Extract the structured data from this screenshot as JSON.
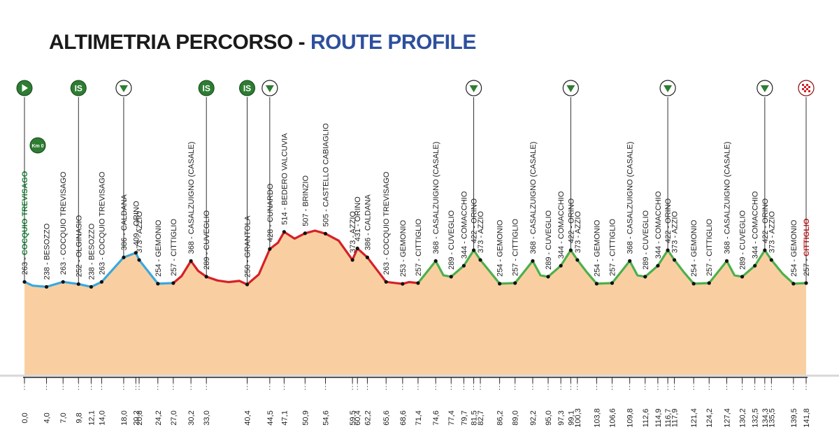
{
  "title": {
    "part1": "ALTIMETRIA PERCORSO - ",
    "part2": "ROUTE PROFILE"
  },
  "colors": {
    "fill": "#f9cfa2",
    "sector_blue": "#3aa7dd",
    "sector_red": "#d62027",
    "sector_green": "#4bb04a",
    "icon_green": "#2e7d32",
    "start_name": "#1c8a3b",
    "finish_name": "#d62027",
    "title_blue": "#2e4f9e"
  },
  "km0_label": "Km 0",
  "chart_data": {
    "type": "area",
    "title": "ALTIMETRIA PERCORSO - ROUTE PROFILE",
    "xlabel": "",
    "ylabel": "",
    "x_unit": "km",
    "y_unit": "m",
    "grid": false,
    "xlim": [
      0,
      141.8
    ],
    "points": [
      {
        "km": 0.0,
        "alt": 263,
        "name": "COCQUIO TREVISAGO",
        "label": "263 - COCQUIO TREVISAGO",
        "tick": "0,0"
      },
      {
        "km": 4.0,
        "alt": 238,
        "name": "BESOZZO",
        "label": "238 - BESOZZO",
        "tick": "4,0"
      },
      {
        "km": 7.0,
        "alt": 263,
        "name": "COCQUIO TREVISAGO",
        "label": "263 - COCQUIO TREVISAGO",
        "tick": "7,0"
      },
      {
        "km": 9.8,
        "alt": 252,
        "name": "OLGINASIO",
        "label": "252 - OLGINASIO",
        "tick": "9,8"
      },
      {
        "km": 12.1,
        "alt": 238,
        "name": "BESOZZO",
        "label": "238 - BESOZZO",
        "tick": "12,1"
      },
      {
        "km": 14.0,
        "alt": 263,
        "name": "COCQUIO TREVISAGO",
        "label": "263 - COCQUIO TREVISAGO",
        "tick": "14,0"
      },
      {
        "km": 18.0,
        "alt": 386,
        "name": "CALDANA",
        "label": "386 - CALDANA",
        "tick": "18,0"
      },
      {
        "km": 20.2,
        "alt": 409,
        "name": "ORINO",
        "label": "409 - ORINO",
        "tick": "20,2"
      },
      {
        "km": 20.8,
        "alt": 373,
        "name": "AZZIO",
        "label": "373 - AZZIO",
        "tick": "20,8"
      },
      {
        "km": 24.2,
        "alt": 254,
        "name": "GEMONIO",
        "label": "254 - GEMONIO",
        "tick": "24,2"
      },
      {
        "km": 27.0,
        "alt": 257,
        "name": "CITTIGLIO",
        "label": "257 - CITTIGLIO",
        "tick": "27,0"
      },
      {
        "km": 30.2,
        "alt": 368,
        "name": "CASALZUIGNO (CASALE)",
        "label": "368 - CASALZUIGNO (CASALE)",
        "tick": "30,2"
      },
      {
        "km": 33.0,
        "alt": 289,
        "name": "CUVEGLIO",
        "label": "289 - CUVEGLIO",
        "tick": "33,0"
      },
      {
        "km": 40.4,
        "alt": 250,
        "name": "GRANTOLA",
        "label": "250 - GRANTOLA",
        "tick": "40,4"
      },
      {
        "km": 44.5,
        "alt": 428,
        "name": "CUNARDO",
        "label": "428 - CUNARDO",
        "tick": "44,5"
      },
      {
        "km": 47.1,
        "alt": 514,
        "name": "BEDERO VALCUVIA",
        "label": "514 - BEDERO VALCUVIA",
        "tick": "47,1"
      },
      {
        "km": 50.9,
        "alt": 507,
        "name": "BRINZIO",
        "label": "507 - BRINZIO",
        "tick": "50,9"
      },
      {
        "km": 54.6,
        "alt": 505,
        "name": "CASTELLO CABIAGLIO",
        "label": "505 - CASTELLO CABIAGLIO",
        "tick": "54,6"
      },
      {
        "km": 59.5,
        "alt": 373,
        "name": "AZZIO",
        "label": "373 - AZZIO",
        "tick": "59,5"
      },
      {
        "km": 60.4,
        "alt": 431,
        "name": "ORINO",
        "label": "431 - ORINO",
        "tick": "60,4"
      },
      {
        "km": 62.2,
        "alt": 386,
        "name": "CALDANA",
        "label": "386 - CALDANA",
        "tick": "62,2"
      },
      {
        "km": 65.6,
        "alt": 263,
        "name": "COCQUIO TREVISAGO",
        "label": "263 - COCQUIO TREVISAGO",
        "tick": "65,6"
      },
      {
        "km": 68.6,
        "alt": 253,
        "name": "GEMONIO",
        "label": "253 - GEMONIO",
        "tick": "68,6"
      },
      {
        "km": 71.4,
        "alt": 257,
        "name": "CITTIGLIO",
        "label": "257 - CITTIGLIO",
        "tick": "71,4"
      },
      {
        "km": 74.6,
        "alt": 368,
        "name": "CASALZUIGNO (CASALE)",
        "label": "368 - CASALZUIGNO (CASALE)",
        "tick": "74,6"
      },
      {
        "km": 77.4,
        "alt": 289,
        "name": "CUVEGLIO",
        "label": "289 - CUVEGLIO",
        "tick": "77,4"
      },
      {
        "km": 79.7,
        "alt": 344,
        "name": "COMACCHIO",
        "label": "344 - COMACCHIO",
        "tick": "79,7"
      },
      {
        "km": 81.5,
        "alt": 422,
        "name": "ORINO",
        "label": "422 - ORINO",
        "tick": "81,5"
      },
      {
        "km": 82.7,
        "alt": 373,
        "name": "AZZIO",
        "label": "373 - AZZIO",
        "tick": "82,7"
      },
      {
        "km": 86.2,
        "alt": 254,
        "name": "GEMONIO",
        "label": "254 - GEMONIO",
        "tick": "86,2"
      },
      {
        "km": 89.0,
        "alt": 257,
        "name": "CITTIGLIO",
        "label": "257 - CITTIGLIO",
        "tick": "89,0"
      },
      {
        "km": 92.2,
        "alt": 368,
        "name": "CASALZUIGNO (CASALE)",
        "label": "368 - CASALZUIGNO (CASALE)",
        "tick": "92,2"
      },
      {
        "km": 95.0,
        "alt": 289,
        "name": "CUVEGLIO",
        "label": "289 - CUVEGLIO",
        "tick": "95,0"
      },
      {
        "km": 97.3,
        "alt": 344,
        "name": "COMACCHIO",
        "label": "344 - COMACCHIO",
        "tick": "97,3"
      },
      {
        "km": 99.1,
        "alt": 422,
        "name": "ORINO",
        "label": "422 - ORINO",
        "tick": "99,1"
      },
      {
        "km": 100.3,
        "alt": 373,
        "name": "AZZIO",
        "label": "373 - AZZIO",
        "tick": "100,3"
      },
      {
        "km": 103.8,
        "alt": 254,
        "name": "GEMONIO",
        "label": "254 - GEMONIO",
        "tick": "103,8"
      },
      {
        "km": 106.6,
        "alt": 257,
        "name": "CITTIGLIO",
        "label": "257 - CITTIGLIO",
        "tick": "106,6"
      },
      {
        "km": 109.8,
        "alt": 368,
        "name": "CASALZUIGNO (CASALE)",
        "label": "368 - CASALZUIGNO (CASALE)",
        "tick": "109,8"
      },
      {
        "km": 112.6,
        "alt": 289,
        "name": "CUVEGLIO",
        "label": "289 - CUVEGLIO",
        "tick": "112,6"
      },
      {
        "km": 114.9,
        "alt": 344,
        "name": "COMACCHIO",
        "label": "344 - COMACCHIO",
        "tick": "114,9"
      },
      {
        "km": 116.7,
        "alt": 422,
        "name": "ORINO",
        "label": "422 - ORINO",
        "tick": "116,7"
      },
      {
        "km": 117.9,
        "alt": 373,
        "name": "AZZIO",
        "label": "373 - AZZIO",
        "tick": "117,9"
      },
      {
        "km": 121.4,
        "alt": 254,
        "name": "GEMONIO",
        "label": "254 - GEMONIO",
        "tick": "121,4"
      },
      {
        "km": 124.2,
        "alt": 257,
        "name": "CITTIGLIO",
        "label": "257 - CITTIGLIO",
        "tick": "124,2"
      },
      {
        "km": 127.4,
        "alt": 368,
        "name": "CASALZUIGNO (CASALE)",
        "label": "368 - CASALZUIGNO (CASALE)",
        "tick": "127,4"
      },
      {
        "km": 130.2,
        "alt": 289,
        "name": "CUVEGLIO",
        "label": "289 - CUVEGLIO",
        "tick": "130,2"
      },
      {
        "km": 132.5,
        "alt": 344,
        "name": "COMACCHIO",
        "label": "344 - COMACCHIO",
        "tick": "132,5"
      },
      {
        "km": 134.3,
        "alt": 422,
        "name": "ORINO",
        "label": "422 - ORINO",
        "tick": "134,3"
      },
      {
        "km": 135.5,
        "alt": 373,
        "name": "AZZIO",
        "label": "373 - AZZIO",
        "tick": "135,5"
      },
      {
        "km": 139.5,
        "alt": 254,
        "name": "GEMONIO",
        "label": "254 - GEMONIO",
        "tick": "139,5"
      },
      {
        "km": 141.8,
        "alt": 257,
        "name": "CITTIGLIO",
        "label": "257 - CITTIGLIO",
        "tick": "141,8"
      }
    ],
    "extra_shape": [
      {
        "km": 1.5,
        "alt": 244
      },
      {
        "km": 28.5,
        "alt": 292
      },
      {
        "km": 31.5,
        "alt": 318
      },
      {
        "km": 35.0,
        "alt": 270
      },
      {
        "km": 37.0,
        "alt": 262
      },
      {
        "km": 39.0,
        "alt": 268
      },
      {
        "km": 42.5,
        "alt": 300
      },
      {
        "km": 46.0,
        "alt": 460
      },
      {
        "km": 49.0,
        "alt": 480
      },
      {
        "km": 52.7,
        "alt": 520
      },
      {
        "km": 57.0,
        "alt": 470
      },
      {
        "km": 67.0,
        "alt": 258
      },
      {
        "km": 69.8,
        "alt": 262
      },
      {
        "km": 76.0,
        "alt": 296
      },
      {
        "km": 84.5,
        "alt": 312
      },
      {
        "km": 93.6,
        "alt": 296
      },
      {
        "km": 102.0,
        "alt": 312
      },
      {
        "km": 111.2,
        "alt": 296
      },
      {
        "km": 119.6,
        "alt": 312
      },
      {
        "km": 128.8,
        "alt": 296
      },
      {
        "km": 137.5,
        "alt": 305
      }
    ],
    "sectors": [
      {
        "from": 0,
        "to": 27.0,
        "color": "blue"
      },
      {
        "from": 27.0,
        "to": 71.4,
        "color": "red"
      },
      {
        "from": 71.4,
        "to": 141.8,
        "color": "green"
      }
    ],
    "markers": [
      {
        "km": 0.0,
        "type": "start",
        "icon": "play-icon"
      },
      {
        "km": 9.8,
        "type": "sprint",
        "text": "IS",
        "icon": "intermediate-sprint-icon"
      },
      {
        "km": 18.0,
        "type": "feed",
        "icon": "triangle-down-icon"
      },
      {
        "km": 33.0,
        "type": "sprint",
        "text": "IS",
        "icon": "intermediate-sprint-icon"
      },
      {
        "km": 40.4,
        "type": "sprint",
        "text": "IS",
        "icon": "intermediate-sprint-icon"
      },
      {
        "km": 44.5,
        "type": "feed",
        "icon": "triangle-down-icon"
      },
      {
        "km": 81.5,
        "type": "feed",
        "icon": "triangle-down-icon"
      },
      {
        "km": 99.1,
        "type": "feed",
        "icon": "triangle-down-icon"
      },
      {
        "km": 116.7,
        "type": "feed",
        "icon": "triangle-down-icon"
      },
      {
        "km": 134.3,
        "type": "feed",
        "icon": "triangle-down-icon"
      },
      {
        "km": 141.8,
        "type": "finish",
        "icon": "checkered-flag-icon"
      }
    ]
  }
}
